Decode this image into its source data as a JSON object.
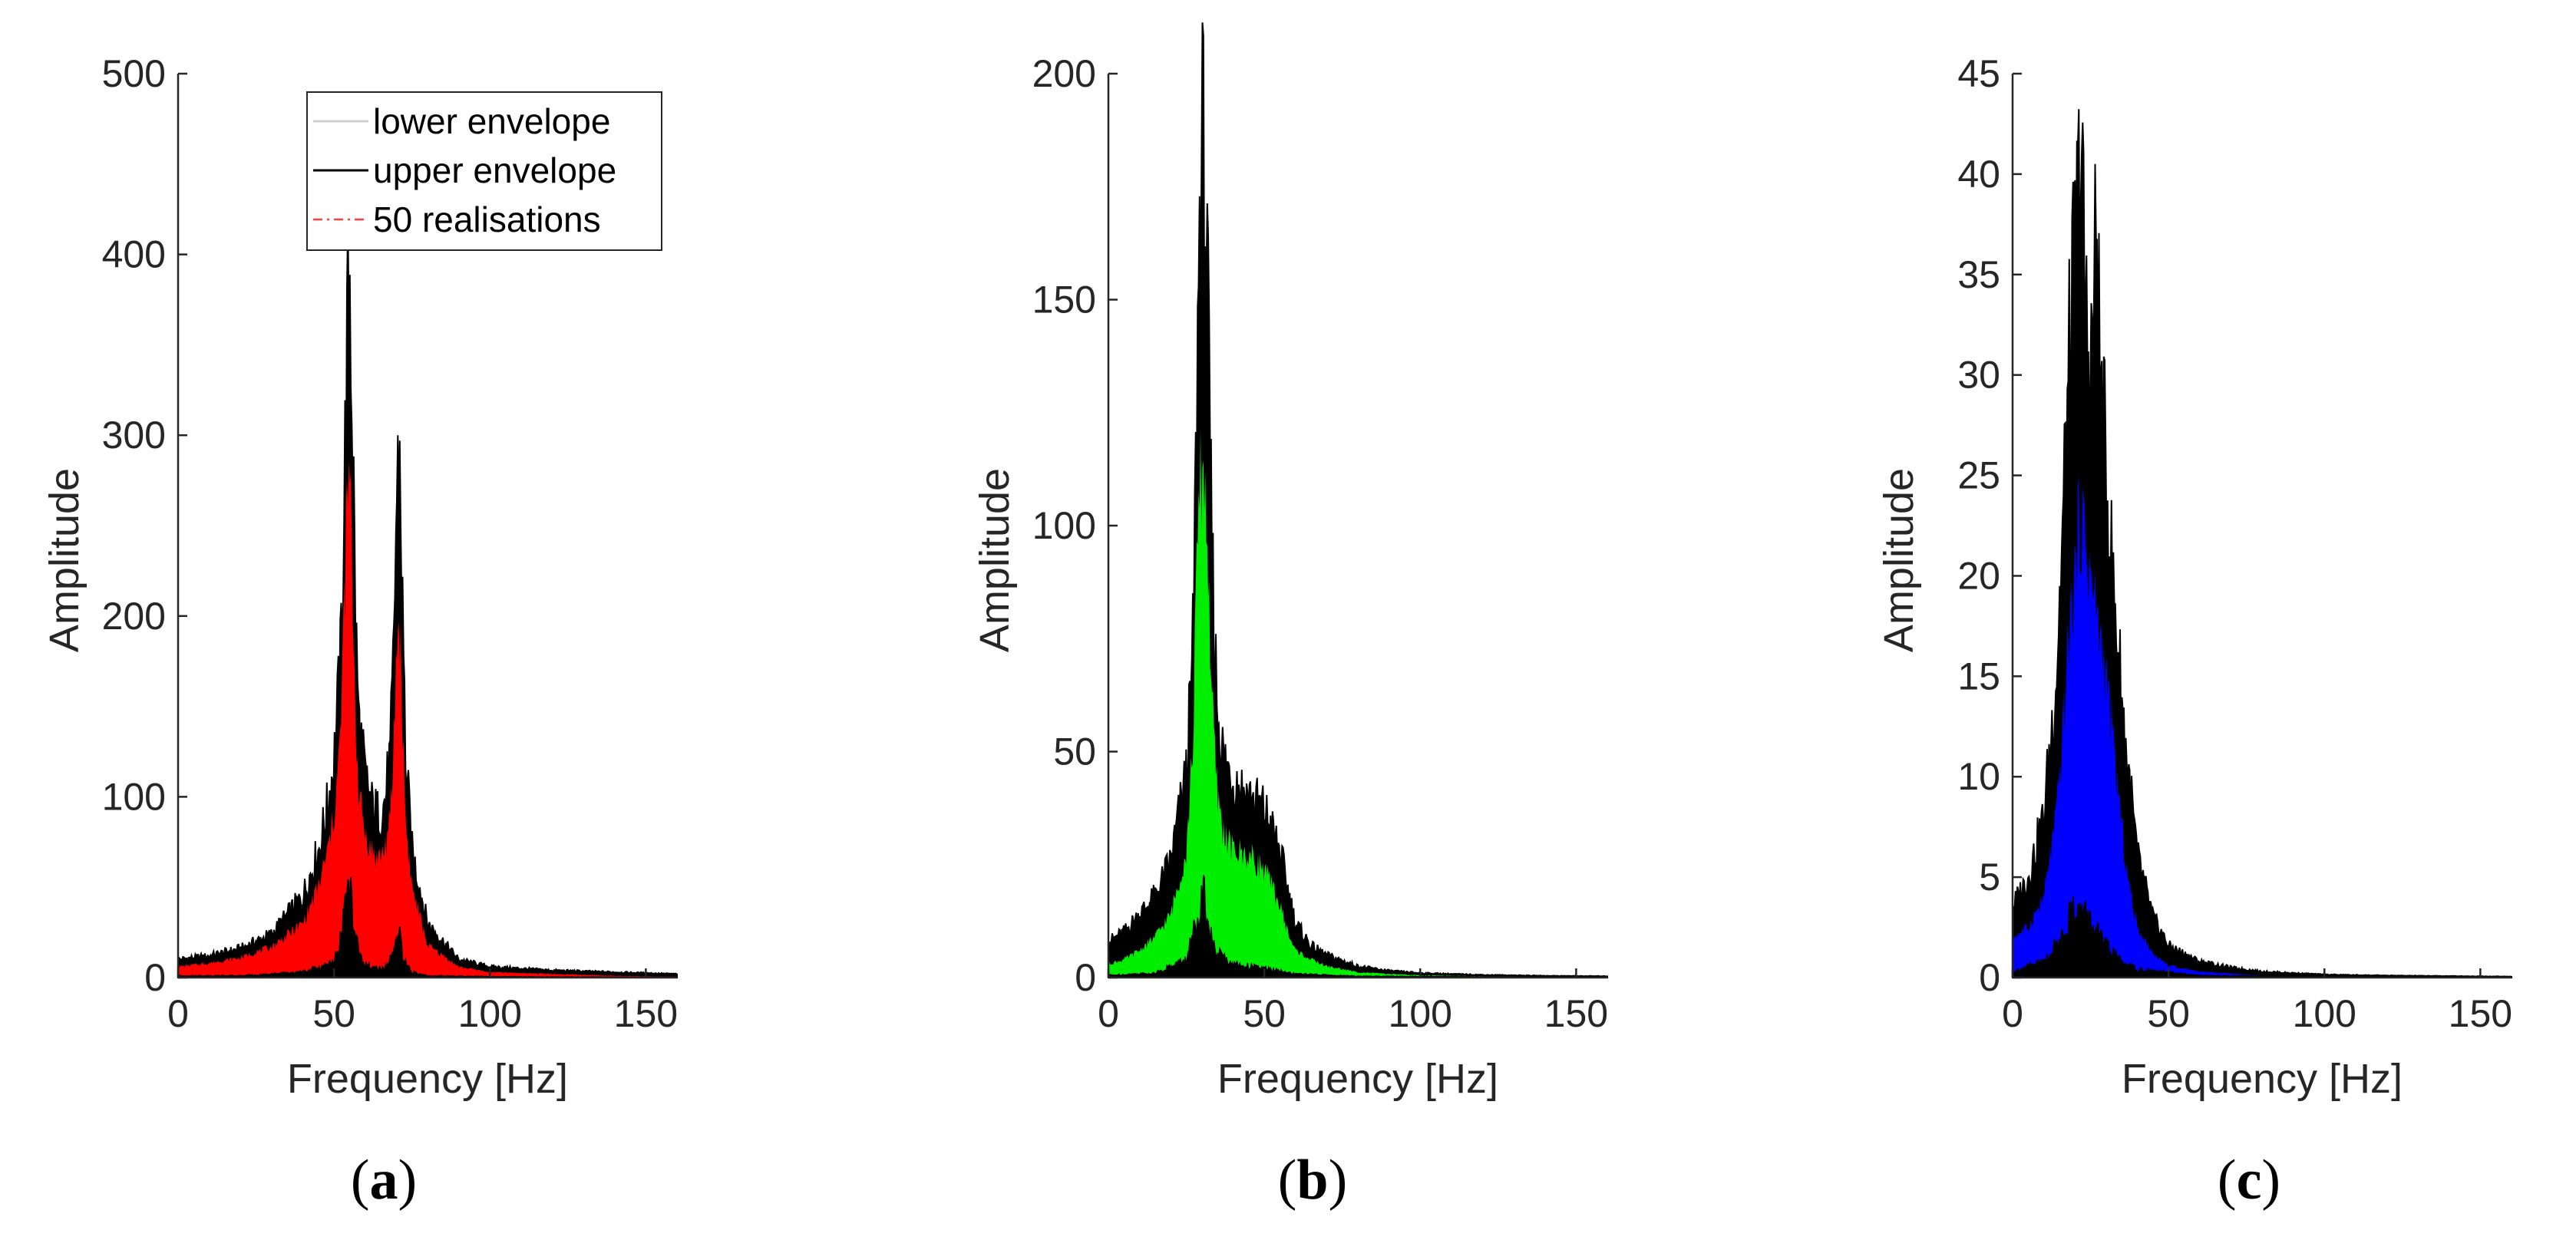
{
  "colors": {
    "panel_a_fill": "#ff0000",
    "panel_b_fill": "#00ee00",
    "panel_c_fill": "#0000ff",
    "envelope": "#000000",
    "lower_envelope_legend": "#d0d0d0",
    "realisation_legend": "#ff4040"
  },
  "chart_data": [
    {
      "type": "area",
      "caption": {
        "open": "(",
        "letter": "a",
        "close": ")"
      },
      "xlabel": "Frequency [Hz]",
      "ylabel": "Amplitude",
      "xlim": [
        0,
        160
      ],
      "ylim": [
        0,
        500
      ],
      "xticks": [
        0,
        50,
        100,
        150
      ],
      "yticks": [
        0,
        100,
        200,
        300,
        400,
        500
      ],
      "legend": {
        "position": "top-right",
        "entries": [
          {
            "label": "lower envelope",
            "style": "solid",
            "color": "#d0d0d0"
          },
          {
            "label": "upper envelope",
            "style": "solid",
            "color": "#000000"
          },
          {
            "label": "50 realisations",
            "style": "dash-dot",
            "color": "#ff4040"
          }
        ]
      },
      "series": [
        {
          "role": "upper-envelope",
          "x": [
            0,
            10,
            20,
            30,
            40,
            45,
            48,
            50,
            52,
            53,
            54,
            55,
            56,
            57,
            58,
            60,
            62,
            64,
            66,
            68,
            69,
            70,
            71,
            72,
            73,
            75,
            80,
            90,
            100,
            120,
            140,
            160
          ],
          "values": [
            10,
            12,
            16,
            24,
            45,
            70,
            95,
            120,
            170,
            240,
            330,
            400,
            300,
            190,
            140,
            110,
            95,
            90,
            95,
            120,
            170,
            260,
            295,
            200,
            120,
            70,
            30,
            10,
            6,
            4,
            3,
            2
          ]
        },
        {
          "role": "realisations",
          "x": [
            0,
            10,
            20,
            30,
            40,
            45,
            48,
            50,
            52,
            53,
            54,
            55,
            56,
            57,
            58,
            60,
            62,
            64,
            66,
            68,
            69,
            70,
            71,
            72,
            73,
            75,
            80,
            90,
            100,
            120,
            140,
            160
          ],
          "values": [
            6,
            8,
            11,
            17,
            30,
            50,
            70,
            90,
            130,
            190,
            250,
            280,
            210,
            140,
            100,
            80,
            70,
            66,
            70,
            85,
            120,
            180,
            200,
            140,
            85,
            50,
            18,
            6,
            3,
            2,
            1,
            0.5
          ]
        },
        {
          "role": "lower-envelope",
          "x": [
            0,
            20,
            40,
            50,
            52,
            54,
            55,
            56,
            58,
            62,
            66,
            69,
            70,
            71,
            72,
            75,
            80,
            100,
            160
          ],
          "values": [
            1,
            1,
            3,
            8,
            20,
            45,
            50,
            35,
            12,
            5,
            5,
            12,
            20,
            25,
            10,
            3,
            1,
            0.5,
            0.2
          ]
        }
      ]
    },
    {
      "type": "area",
      "caption": {
        "open": "(",
        "letter": "b",
        "close": ")"
      },
      "xlabel": "Frequency [Hz]",
      "ylabel": "Amplitude",
      "xlim": [
        0,
        160
      ],
      "ylim": [
        0,
        200
      ],
      "xticks": [
        0,
        50,
        100,
        150
      ],
      "yticks": [
        0,
        50,
        100,
        150,
        200
      ],
      "series": [
        {
          "role": "upper-envelope",
          "x": [
            0,
            5,
            10,
            15,
            20,
            25,
            27,
            28,
            29,
            30,
            31,
            32,
            33,
            34,
            35,
            37,
            40,
            45,
            50,
            55,
            58,
            60,
            65,
            70,
            80,
            90,
            100,
            120,
            140,
            160
          ],
          "values": [
            8,
            10,
            14,
            18,
            26,
            45,
            70,
            110,
            160,
            185,
            175,
            140,
            100,
            75,
            60,
            48,
            44,
            40,
            37,
            28,
            18,
            12,
            7,
            5,
            2.5,
            1.5,
            1,
            0.6,
            0.4,
            0.3
          ]
        },
        {
          "role": "realisations",
          "x": [
            0,
            5,
            10,
            15,
            20,
            25,
            27,
            28,
            29,
            30,
            31,
            32,
            33,
            34,
            35,
            37,
            40,
            45,
            50,
            55,
            58,
            60,
            65,
            70,
            80,
            90,
            100,
            120,
            140,
            160
          ],
          "values": [
            3,
            4,
            6,
            9,
            14,
            28,
            50,
            80,
            105,
            112,
            110,
            90,
            66,
            50,
            40,
            32,
            28,
            27,
            24,
            16,
            9,
            6,
            4,
            2.5,
            1.2,
            0.8,
            0.5,
            0.3,
            0.2,
            0.1
          ]
        },
        {
          "role": "lower-envelope",
          "x": [
            0,
            15,
            25,
            28,
            30,
            31,
            32,
            34,
            40,
            50,
            60,
            80,
            160
          ],
          "values": [
            0.5,
            1,
            4,
            12,
            20,
            18,
            12,
            6,
            3,
            2,
            0.8,
            0.3,
            0.1
          ]
        }
      ]
    },
    {
      "type": "area",
      "caption": {
        "open": "(",
        "letter": "c",
        "close": ")"
      },
      "xlabel": "Frequency [Hz]",
      "ylabel": "Amplitude",
      "xlim": [
        0,
        160
      ],
      "ylim": [
        0,
        45
      ],
      "xticks": [
        0,
        50,
        100,
        150
      ],
      "yticks": [
        0,
        5,
        10,
        15,
        20,
        25,
        30,
        35,
        40,
        45
      ],
      "series": [
        {
          "role": "upper-envelope",
          "x": [
            0,
            5,
            10,
            14,
            16,
            18,
            20,
            21,
            22,
            23,
            24,
            25,
            26,
            27,
            28,
            30,
            32,
            34,
            36,
            38,
            40,
            45,
            50,
            60,
            70,
            80,
            100,
            120,
            160
          ],
          "values": [
            3.5,
            5,
            8,
            15,
            22,
            30,
            36,
            38,
            42,
            34,
            32,
            30,
            33,
            38,
            30,
            25,
            20,
            16,
            12,
            9,
            6,
            3,
            1.6,
            0.8,
            0.5,
            0.3,
            0.15,
            0.1,
            0.05
          ]
        },
        {
          "role": "realisations",
          "x": [
            0,
            5,
            10,
            14,
            16,
            18,
            20,
            21,
            22,
            23,
            24,
            25,
            26,
            27,
            28,
            30,
            32,
            34,
            36,
            38,
            40,
            45,
            50,
            60,
            70,
            80,
            100,
            120,
            160
          ],
          "values": [
            2,
            2.5,
            4,
            8,
            12,
            17,
            20,
            22,
            23,
            22,
            21,
            20,
            19,
            18,
            17,
            15,
            12,
            9,
            6,
            4,
            2.5,
            1.2,
            0.6,
            0.3,
            0.2,
            0.1,
            0.05,
            0.03,
            0.02
          ]
        },
        {
          "role": "lower-envelope",
          "x": [
            0,
            10,
            15,
            18,
            20,
            22,
            24,
            26,
            30,
            35,
            40,
            60,
            160
          ],
          "values": [
            0.3,
            0.8,
            1.8,
            3,
            3.5,
            3.2,
            3,
            2.5,
            1.5,
            0.8,
            0.4,
            0.1,
            0.02
          ]
        }
      ]
    }
  ]
}
